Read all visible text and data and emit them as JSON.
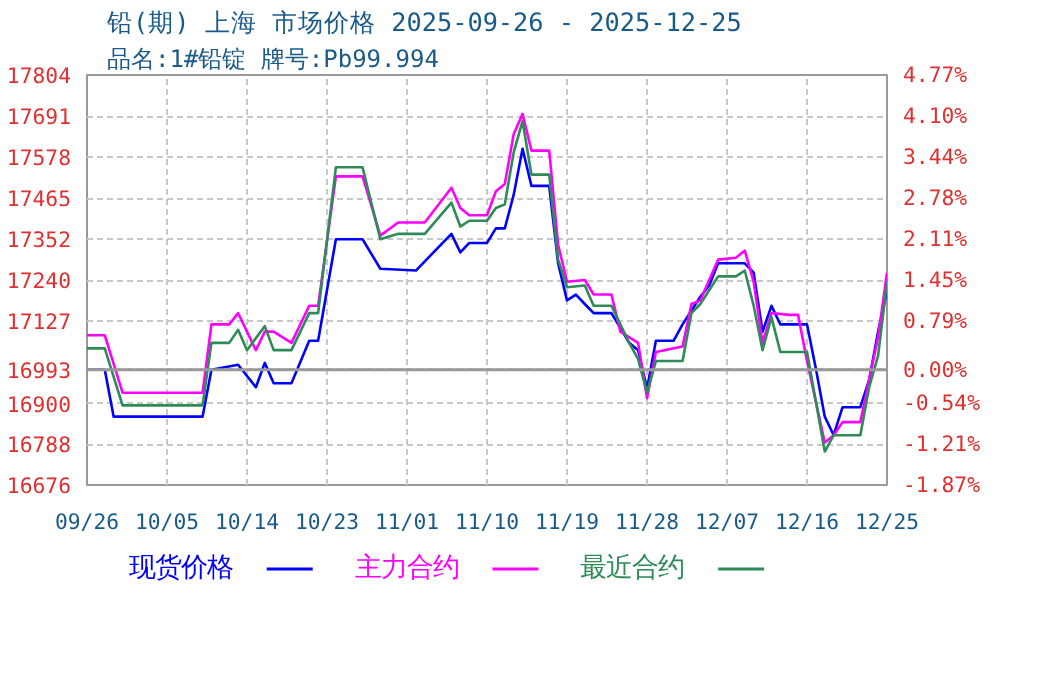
{
  "chart_data": {
    "type": "line",
    "title": "铅(期) 上海 市场价格 2025-09-26 - 2025-12-25",
    "subtitle": "品名:1#铅锭 牌号:Pb99.994",
    "xlim": [
      "2025-09-26",
      "2025-12-25"
    ],
    "xticks": [
      {
        "value": "2025-09-26",
        "label": "09/26"
      },
      {
        "value": "2025-10-05",
        "label": "10/05"
      },
      {
        "value": "2025-10-14",
        "label": "10/14"
      },
      {
        "value": "2025-10-23",
        "label": "10/23"
      },
      {
        "value": "2025-11-01",
        "label": "11/01"
      },
      {
        "value": "2025-11-10",
        "label": "11/10"
      },
      {
        "value": "2025-11-19",
        "label": "11/19"
      },
      {
        "value": "2025-11-28",
        "label": "11/28"
      },
      {
        "value": "2025-12-07",
        "label": "12/07"
      },
      {
        "value": "2025-12-16",
        "label": "12/16"
      },
      {
        "value": "2025-12-25",
        "label": "12/25"
      }
    ],
    "ylim": [
      16676,
      17804
    ],
    "yticks": [
      16676,
      16788,
      16900,
      16993,
      17127,
      17240,
      17352,
      17465,
      17578,
      17691,
      17804
    ],
    "y2lim": [
      -1.87,
      4.77
    ],
    "y2ticks": [
      {
        "value": -1.87,
        "label": "-1.87%"
      },
      {
        "value": -1.21,
        "label": "-1.21%"
      },
      {
        "value": -0.54,
        "label": "-0.54%"
      },
      {
        "value": 0,
        "label": "0.00%"
      },
      {
        "value": 0.79,
        "label": "0.79%"
      },
      {
        "value": 1.45,
        "label": "1.45%"
      },
      {
        "value": 2.11,
        "label": "2.11%"
      },
      {
        "value": 2.78,
        "label": "2.78%"
      },
      {
        "value": 3.44,
        "label": "3.44%"
      },
      {
        "value": 4.1,
        "label": "4.10%"
      },
      {
        "value": 4.77,
        "label": "4.77%"
      }
    ],
    "ref_lines": [
      {
        "axis": "y",
        "value": 16993,
        "color": "#999999",
        "line_style": "solid"
      }
    ],
    "grid": true,
    "legend": "bottom",
    "marker": "none",
    "line_style": "solid",
    "series": [
      {
        "name": "现货价格",
        "color": "#0000ff",
        "x": [
          "2025-09-26",
          "2025-09-28",
          "2025-09-29",
          "2025-10-09",
          "2025-10-10",
          "2025-10-13",
          "2025-10-15",
          "2025-10-16",
          "2025-10-17",
          "2025-10-19",
          "2025-10-21",
          "2025-10-22",
          "2025-10-24",
          "2025-10-27",
          "2025-10-29",
          "2025-11-02",
          "2025-11-06",
          "2025-11-07",
          "2025-11-08",
          "2025-11-10",
          "2025-11-11",
          "2025-11-12",
          "2025-11-13",
          "2025-11-14",
          "2025-11-15",
          "2025-11-17",
          "2025-11-18",
          "2025-11-19",
          "2025-11-20",
          "2025-11-21",
          "2025-11-22",
          "2025-11-24",
          "2025-11-26",
          "2025-11-27",
          "2025-11-28",
          "2025-11-29",
          "2025-12-01",
          "2025-12-02",
          "2025-12-04",
          "2025-12-05",
          "2025-12-06",
          "2025-12-09",
          "2025-12-10",
          "2025-12-11",
          "2025-12-12",
          "2025-12-13",
          "2025-12-16",
          "2025-12-17",
          "2025-12-18",
          "2025-12-19",
          "2025-12-20",
          "2025-12-22",
          "2025-12-23",
          "2025-12-24",
          "2025-12-25"
        ],
        "values": [
          16993,
          16993,
          16864,
          16864,
          16993,
          17007,
          16945,
          17012,
          16956,
          16956,
          17073,
          17073,
          17352,
          17352,
          17271,
          17266,
          17367,
          17316,
          17342,
          17342,
          17382,
          17382,
          17474,
          17601,
          17499,
          17499,
          17286,
          17184,
          17200,
          17174,
          17149,
          17149,
          17067,
          17047,
          16940,
          17073,
          17073,
          17118,
          17194,
          17225,
          17286,
          17286,
          17260,
          17098,
          17169,
          17118,
          17118,
          16996,
          16864,
          16813,
          16890,
          16890,
          16966,
          17098,
          17210
        ]
      },
      {
        "name": "主力合约",
        "color": "#ff00ff",
        "x": [
          "2025-09-26",
          "2025-09-28",
          "2025-09-30",
          "2025-10-09",
          "2025-10-10",
          "2025-10-12",
          "2025-10-13",
          "2025-10-15",
          "2025-10-16",
          "2025-10-17",
          "2025-10-19",
          "2025-10-21",
          "2025-10-22",
          "2025-10-24",
          "2025-10-27",
          "2025-10-29",
          "2025-10-31",
          "2025-11-03",
          "2025-11-06",
          "2025-11-07",
          "2025-11-08",
          "2025-11-10",
          "2025-11-11",
          "2025-11-12",
          "2025-11-13",
          "2025-11-14",
          "2025-11-15",
          "2025-11-17",
          "2025-11-18",
          "2025-11-19",
          "2025-11-21",
          "2025-11-22",
          "2025-11-24",
          "2025-11-25",
          "2025-11-27",
          "2025-11-28",
          "2025-11-29",
          "2025-12-02",
          "2025-12-03",
          "2025-12-04",
          "2025-12-06",
          "2025-12-08",
          "2025-12-09",
          "2025-12-10",
          "2025-12-11",
          "2025-12-12",
          "2025-12-14",
          "2025-12-15",
          "2025-12-16",
          "2025-12-18",
          "2025-12-19",
          "2025-12-20",
          "2025-12-22",
          "2025-12-23",
          "2025-12-24",
          "2025-12-25"
        ],
        "values": [
          17088,
          17088,
          16930,
          16930,
          17118,
          17118,
          17149,
          17047,
          17098,
          17098,
          17067,
          17169,
          17169,
          17525,
          17525,
          17362,
          17398,
          17398,
          17494,
          17438,
          17418,
          17418,
          17484,
          17504,
          17641,
          17697,
          17596,
          17596,
          17337,
          17235,
          17240,
          17200,
          17200,
          17098,
          17067,
          16915,
          17042,
          17057,
          17174,
          17184,
          17296,
          17301,
          17321,
          17235,
          17067,
          17149,
          17144,
          17144,
          17017,
          16793,
          16813,
          16849,
          16849,
          16966,
          17083,
          17260
        ]
      },
      {
        "name": "最近合约",
        "color": "#2e8b57",
        "x": [
          "2025-09-26",
          "2025-09-28",
          "2025-09-30",
          "2025-10-09",
          "2025-10-10",
          "2025-10-12",
          "2025-10-13",
          "2025-10-14",
          "2025-10-16",
          "2025-10-17",
          "2025-10-19",
          "2025-10-21",
          "2025-10-22",
          "2025-10-24",
          "2025-10-27",
          "2025-10-29",
          "2025-10-31",
          "2025-11-03",
          "2025-11-06",
          "2025-11-07",
          "2025-11-08",
          "2025-11-10",
          "2025-11-11",
          "2025-11-12",
          "2025-11-13",
          "2025-11-14",
          "2025-11-15",
          "2025-11-17",
          "2025-11-18",
          "2025-11-19",
          "2025-11-21",
          "2025-11-22",
          "2025-11-24",
          "2025-11-26",
          "2025-11-27",
          "2025-11-28",
          "2025-11-29",
          "2025-12-02",
          "2025-12-03",
          "2025-12-04",
          "2025-12-06",
          "2025-12-08",
          "2025-12-09",
          "2025-12-10",
          "2025-12-11",
          "2025-12-12",
          "2025-12-13",
          "2025-12-16",
          "2025-12-18",
          "2025-12-19",
          "2025-12-22",
          "2025-12-23",
          "2025-12-24",
          "2025-12-25"
        ],
        "values": [
          17052,
          17052,
          16895,
          16895,
          17067,
          17067,
          17103,
          17047,
          17113,
          17047,
          17047,
          17149,
          17149,
          17550,
          17550,
          17352,
          17367,
          17367,
          17453,
          17387,
          17403,
          17403,
          17438,
          17448,
          17591,
          17677,
          17530,
          17530,
          17296,
          17220,
          17225,
          17169,
          17169,
          17067,
          17022,
          16930,
          17017,
          17017,
          17149,
          17174,
          17250,
          17250,
          17266,
          17169,
          17047,
          17138,
          17042,
          17042,
          16768,
          16813,
          16813,
          16946,
          17032,
          17235
        ]
      }
    ]
  }
}
